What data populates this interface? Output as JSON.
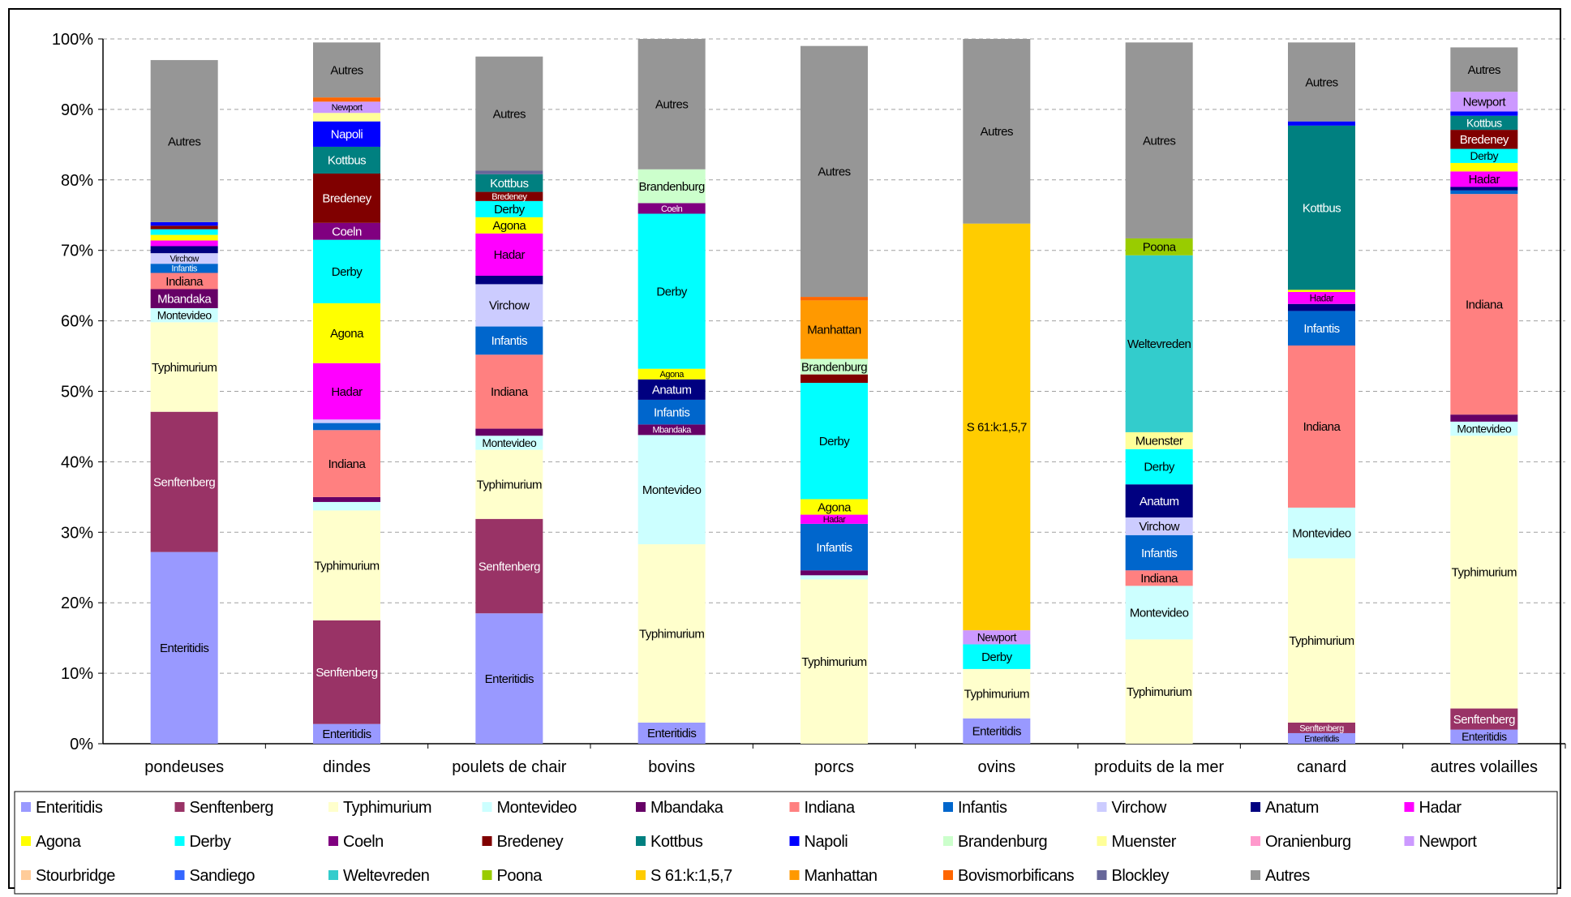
{
  "chart_data": {
    "type": "bar",
    "stacked": true,
    "percent_stacked": true,
    "grid": "horizontal-dashed",
    "legend_position": "bottom",
    "ylim": [
      0,
      100
    ],
    "y_ticks": [
      "0%",
      "10%",
      "20%",
      "30%",
      "40%",
      "50%",
      "60%",
      "70%",
      "80%",
      "90%",
      "100%"
    ],
    "categories": [
      "pondeuses",
      "dindes",
      "poulets de chair",
      "bovins",
      "porcs",
      "ovins",
      "produits de la mer",
      "canard",
      "autres volailles"
    ],
    "series": [
      {
        "name": "Enteritidis",
        "color": "#9999FF",
        "values": [
          27.2,
          2.8,
          18.5,
          3.0,
          0,
          3.6,
          0,
          1.5,
          2.0
        ]
      },
      {
        "name": "Senftenberg",
        "color": "#993366",
        "values": [
          19.9,
          14.7,
          13.4,
          0,
          0,
          0,
          0,
          1.5,
          3.0
        ]
      },
      {
        "name": "Typhimurium",
        "color": "#FFFFCC",
        "values": [
          12.7,
          15.6,
          9.8,
          25.3,
          23.3,
          7.0,
          14.8,
          23.3,
          38.7
        ]
      },
      {
        "name": "Montevideo",
        "color": "#CCFFFF",
        "values": [
          2.0,
          1.2,
          2.0,
          15.5,
          0.6,
          0,
          7.6,
          7.2,
          2.0
        ]
      },
      {
        "name": "Mbandaka",
        "color": "#660066",
        "values": [
          2.7,
          0.7,
          1.0,
          1.5,
          0.7,
          0,
          0,
          0,
          1.0
        ]
      },
      {
        "name": "Indiana",
        "color": "#FF8080",
        "values": [
          2.3,
          9.5,
          10.5,
          0,
          0,
          0,
          2.2,
          23.0,
          31.3
        ]
      },
      {
        "name": "Infantis",
        "color": "#0066CC",
        "values": [
          1.3,
          1.0,
          4.0,
          3.5,
          6.6,
          0,
          5.0,
          4.9,
          0.5
        ]
      },
      {
        "name": "Virchow",
        "color": "#CCCCFF",
        "values": [
          1.5,
          0.5,
          6.0,
          0,
          0,
          0,
          2.5,
          0,
          0
        ]
      },
      {
        "name": "Anatum",
        "color": "#000080",
        "values": [
          1.0,
          0,
          1.2,
          2.9,
          0,
          0,
          4.7,
          1.0,
          0.5
        ]
      },
      {
        "name": "Hadar",
        "color": "#FF00FF",
        "values": [
          0.8,
          8.0,
          6.0,
          0,
          1.3,
          0,
          0,
          1.7,
          2.2
        ]
      },
      {
        "name": "Agona",
        "color": "#FFFF00",
        "values": [
          0.8,
          8.5,
          2.3,
          1.5,
          2.2,
          0,
          0,
          0.3,
          1.2
        ]
      },
      {
        "name": "Derby",
        "color": "#00FFFF",
        "values": [
          0.8,
          9.0,
          2.3,
          22.0,
          16.5,
          3.5,
          5.0,
          0,
          2.0
        ]
      },
      {
        "name": "Coeln",
        "color": "#800080",
        "values": [
          0,
          2.4,
          0,
          1.5,
          0,
          0,
          0,
          0,
          0
        ]
      },
      {
        "name": "Bredeney",
        "color": "#800000",
        "values": [
          0.5,
          7.0,
          1.3,
          0,
          1.2,
          0,
          0,
          0,
          2.7
        ]
      },
      {
        "name": "Kottbus",
        "color": "#008080",
        "values": [
          0,
          3.8,
          2.5,
          0,
          0,
          0,
          0,
          23.3,
          2.0
        ]
      },
      {
        "name": "Napoli",
        "color": "#0000FF",
        "values": [
          0.5,
          3.6,
          0,
          0,
          0,
          0,
          0,
          0.6,
          0.6
        ]
      },
      {
        "name": "Brandenburg",
        "color": "#CCFFCC",
        "values": [
          0,
          0,
          0,
          4.8,
          2.2,
          0,
          0,
          0,
          0
        ]
      },
      {
        "name": "Muenster",
        "color": "#FFFF99",
        "values": [
          0,
          1.2,
          0,
          0,
          0,
          0,
          2.4,
          0,
          0
        ]
      },
      {
        "name": "Oranienburg",
        "color": "#FF99CC",
        "values": [
          0,
          0,
          0,
          0,
          0,
          0,
          0,
          0,
          0
        ]
      },
      {
        "name": "Newport",
        "color": "#CC99FF",
        "values": [
          0,
          1.6,
          0,
          0,
          0,
          2.0,
          0,
          0,
          2.8
        ]
      },
      {
        "name": "Stourbridge",
        "color": "#FFCC99",
        "values": [
          0,
          0,
          0,
          0,
          0,
          0,
          0,
          0,
          0
        ]
      },
      {
        "name": "Sandiego",
        "color": "#3366FF",
        "values": [
          0,
          0,
          0,
          0,
          0,
          0,
          0,
          0,
          0
        ]
      },
      {
        "name": "Weltevreden",
        "color": "#33CCCC",
        "values": [
          0,
          0,
          0,
          0,
          0,
          0,
          25.1,
          0,
          0
        ]
      },
      {
        "name": "Poona",
        "color": "#99CC00",
        "values": [
          0,
          0,
          0,
          0,
          0,
          0,
          2.4,
          0,
          0
        ]
      },
      {
        "name": "S 61:k:1,5,7",
        "color": "#FFCC00",
        "values": [
          0,
          0,
          0,
          0,
          0,
          57.7,
          0,
          0,
          0
        ]
      },
      {
        "name": "Manhattan",
        "color": "#FF9900",
        "values": [
          0,
          0,
          0,
          0,
          8.3,
          0,
          0,
          0,
          0
        ]
      },
      {
        "name": "Bovismorbificans",
        "color": "#FF6600",
        "values": [
          0,
          0.6,
          0,
          0,
          0.5,
          0,
          0,
          0,
          0
        ]
      },
      {
        "name": "Blockley",
        "color": "#666699",
        "values": [
          0,
          0,
          0.5,
          0,
          0,
          0,
          0,
          0,
          0
        ]
      },
      {
        "name": "Autres",
        "color": "#969696",
        "values": [
          23.0,
          7.8,
          16.2,
          18.5,
          35.6,
          26.2,
          27.8,
          11.2,
          6.3
        ]
      }
    ],
    "legend": [
      [
        "Enteritidis",
        "Senftenberg",
        "Typhimurium",
        "Montevideo",
        "Mbandaka",
        "Indiana",
        "Infantis",
        "Virchow",
        "Anatum",
        "Hadar"
      ],
      [
        "Agona",
        "Derby",
        "Coeln",
        "Bredeney",
        "Kottbus",
        "Napoli",
        "Brandenburg",
        "Muenster",
        "Oranienburg",
        "Newport"
      ],
      [
        "Stourbridge",
        "Sandiego",
        "Weltevreden",
        "Poona",
        "S 61:k:1,5,7",
        "Manhattan",
        "Bovismorbificans",
        "Blockley",
        "Autres"
      ]
    ]
  }
}
